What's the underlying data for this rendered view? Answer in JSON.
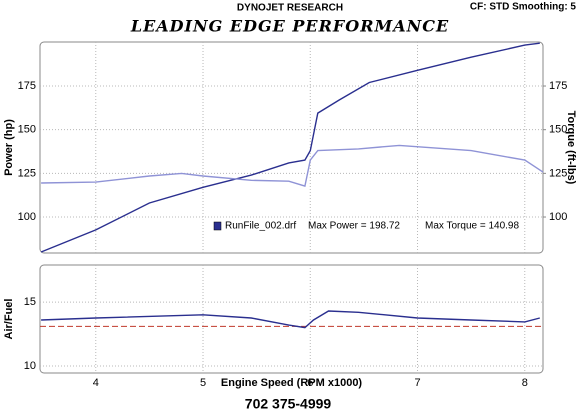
{
  "header": {
    "source": "DYNOJET RESEARCH",
    "title": "LEADING EDGE PERFORMANCE",
    "settings": "CF: STD  Smoothing: 5"
  },
  "chart_data": [
    {
      "type": "line",
      "ylabel": "Power (hp)",
      "y2label": "Torque (ft-lbs)",
      "annotation": {
        "file": "RunFile_002.drf",
        "max_power": "Max Power = 198.72",
        "max_torque": "Max Torque = 140.98"
      },
      "xlim": [
        3.48,
        8.17
      ],
      "xticks": [
        4,
        5,
        6,
        7,
        8
      ],
      "ylim": [
        79.4,
        200.2
      ],
      "yticks": [
        100,
        125,
        150,
        175
      ],
      "y2lim": [
        79.4,
        200.2
      ],
      "y2ticks": [
        100,
        125,
        150,
        175
      ],
      "grid": true,
      "series": [
        {
          "name": "Power",
          "color": "#2a2f8f",
          "x": [
            3.49,
            4.0,
            4.5,
            5.0,
            5.45,
            5.8,
            5.95,
            6.0,
            6.07,
            6.27,
            6.55,
            7.0,
            7.5,
            8.0,
            8.14
          ],
          "values": [
            80,
            92.6,
            108,
            117,
            124,
            131,
            132.6,
            138,
            159.5,
            167,
            177,
            184,
            191.5,
            198.4,
            199.5
          ]
        },
        {
          "name": "Torque",
          "color": "#8f93d6",
          "axis": "y2",
          "x": [
            3.49,
            4.0,
            4.5,
            4.8,
            5.0,
            5.45,
            5.8,
            5.95,
            6.0,
            6.07,
            6.45,
            6.83,
            7.5,
            8.0,
            8.17
          ],
          "values": [
            119.5,
            120,
            123.5,
            125,
            123.5,
            121,
            120.5,
            117.7,
            132.6,
            138,
            139,
            141,
            138,
            132.6,
            125.7
          ]
        }
      ]
    },
    {
      "type": "line",
      "ylabel": "Air/Fuel",
      "xlabel": "Engine Speed (RPM x1000)",
      "xlim": [
        3.48,
        8.17
      ],
      "xticks": [
        4,
        5,
        6,
        7,
        8
      ],
      "ylim": [
        9.45,
        17.9
      ],
      "yticks": [
        10,
        15
      ],
      "grid": true,
      "reference_line": {
        "value": 13.1,
        "color": "#c0392b"
      },
      "series": [
        {
          "name": "Air/Fuel",
          "color": "#2a2f8f",
          "x": [
            3.49,
            4.0,
            5.0,
            5.45,
            5.8,
            5.95,
            6.03,
            6.17,
            6.45,
            7.0,
            7.5,
            8.0,
            8.14
          ],
          "values": [
            13.6,
            13.75,
            14.0,
            13.75,
            13.2,
            13.0,
            13.6,
            14.3,
            14.2,
            13.75,
            13.6,
            13.45,
            13.75
          ]
        }
      ]
    }
  ],
  "footer": {
    "phone": "702 375-4999"
  }
}
